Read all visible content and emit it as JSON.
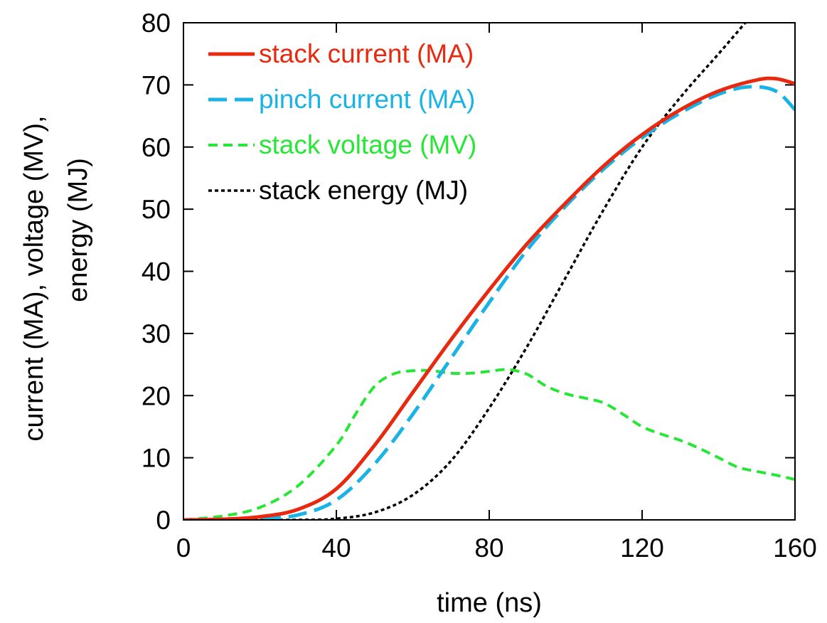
{
  "chart_data": {
    "type": "line",
    "title": "",
    "xlabel": "time (ns)",
    "ylabel": [
      "current (MA), voltage (MV),",
      "energy (MJ)"
    ],
    "xlim": [
      0,
      160
    ],
    "ylim": [
      0,
      80
    ],
    "x_ticks": [
      0,
      40,
      80,
      120,
      160
    ],
    "y_ticks": [
      0,
      10,
      20,
      30,
      40,
      50,
      60,
      70,
      80
    ],
    "grid": false,
    "legend_position": "top-left",
    "series": [
      {
        "name": "stack current (MA)",
        "color": "#e8280f",
        "dash": "solid",
        "points": [
          [
            0,
            0
          ],
          [
            10,
            0.1
          ],
          [
            20,
            0.5
          ],
          [
            30,
            1.7
          ],
          [
            40,
            5
          ],
          [
            50,
            12
          ],
          [
            60,
            20.5
          ],
          [
            70,
            29
          ],
          [
            80,
            37
          ],
          [
            90,
            44.5
          ],
          [
            100,
            51
          ],
          [
            110,
            57
          ],
          [
            120,
            62
          ],
          [
            130,
            66
          ],
          [
            140,
            69
          ],
          [
            150,
            70.8
          ],
          [
            155,
            71
          ],
          [
            160,
            70.2
          ]
        ]
      },
      {
        "name": "pinch current (MA)",
        "color": "#19b3e6",
        "dash": "long-dash",
        "points": [
          [
            0,
            0
          ],
          [
            20,
            0.2
          ],
          [
            30,
            0.8
          ],
          [
            40,
            3.2
          ],
          [
            50,
            9
          ],
          [
            60,
            17
          ],
          [
            70,
            26
          ],
          [
            80,
            35
          ],
          [
            90,
            43.5
          ],
          [
            100,
            50.5
          ],
          [
            110,
            56.5
          ],
          [
            120,
            61.5
          ],
          [
            130,
            65.5
          ],
          [
            140,
            68.5
          ],
          [
            148,
            69.7
          ],
          [
            155,
            69
          ],
          [
            160,
            66
          ]
        ]
      },
      {
        "name": "stack voltage (MV)",
        "color": "#27e636",
        "dash": "dash",
        "points": [
          [
            0,
            0
          ],
          [
            10,
            0.6
          ],
          [
            20,
            2
          ],
          [
            30,
            5.5
          ],
          [
            40,
            12
          ],
          [
            45,
            17
          ],
          [
            50,
            21.5
          ],
          [
            55,
            23.5
          ],
          [
            60,
            24
          ],
          [
            65,
            24
          ],
          [
            70,
            23.6
          ],
          [
            75,
            23.6
          ],
          [
            80,
            23.9
          ],
          [
            85,
            24.2
          ],
          [
            90,
            23.4
          ],
          [
            95,
            21.5
          ],
          [
            100,
            20.3
          ],
          [
            105,
            19.6
          ],
          [
            110,
            18.8
          ],
          [
            115,
            17
          ],
          [
            120,
            15
          ],
          [
            125,
            13.8
          ],
          [
            130,
            12.8
          ],
          [
            135,
            11.5
          ],
          [
            140,
            10
          ],
          [
            145,
            8.5
          ],
          [
            150,
            7.8
          ],
          [
            155,
            7.2
          ],
          [
            160,
            6.5
          ]
        ]
      },
      {
        "name": "stack energy (MJ)",
        "color": "#000000",
        "dash": "dot",
        "points": [
          [
            0,
            0
          ],
          [
            30,
            0
          ],
          [
            40,
            0.2
          ],
          [
            50,
            1.2
          ],
          [
            60,
            4
          ],
          [
            70,
            9.5
          ],
          [
            80,
            18
          ],
          [
            90,
            28
          ],
          [
            100,
            39
          ],
          [
            110,
            50
          ],
          [
            120,
            60
          ],
          [
            130,
            68
          ],
          [
            140,
            75
          ],
          [
            147,
            80
          ]
        ]
      }
    ]
  }
}
